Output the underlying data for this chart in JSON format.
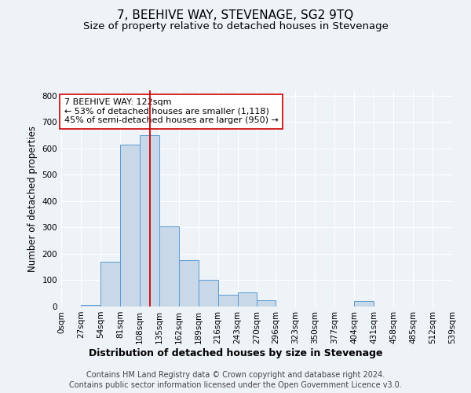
{
  "title": "7, BEEHIVE WAY, STEVENAGE, SG2 9TQ",
  "subtitle": "Size of property relative to detached houses in Stevenage",
  "xlabel": "Distribution of detached houses by size in Stevenage",
  "ylabel": "Number of detached properties",
  "footnote1": "Contains HM Land Registry data © Crown copyright and database right 2024.",
  "footnote2": "Contains public sector information licensed under the Open Government Licence v3.0.",
  "annotation_line1": "7 BEEHIVE WAY: 122sqm",
  "annotation_line2": "← 53% of detached houses are smaller (1,118)",
  "annotation_line3": "45% of semi-detached houses are larger (950) →",
  "property_size": 122,
  "bin_edges": [
    0,
    27,
    54,
    81,
    108,
    135,
    162,
    189,
    216,
    243,
    270,
    296,
    323,
    350,
    377,
    404,
    431,
    458,
    485,
    512,
    539
  ],
  "bar_heights": [
    0,
    5,
    170,
    615,
    650,
    305,
    175,
    100,
    45,
    55,
    25,
    0,
    0,
    0,
    0,
    20,
    0,
    0,
    0,
    0
  ],
  "bar_color": "#c8d8e8",
  "bar_edge_color": "#5b9bd5",
  "vline_color": "#cc0000",
  "vline_x": 122,
  "annotation_box_color": "#cc0000",
  "annotation_fill": "#ffffff",
  "background_color": "#eef3f8",
  "ylim": [
    0,
    820
  ],
  "yticks": [
    0,
    100,
    200,
    300,
    400,
    500,
    600,
    700,
    800
  ],
  "title_fontsize": 11,
  "subtitle_fontsize": 9.5,
  "xlabel_fontsize": 9,
  "ylabel_fontsize": 8.5,
  "tick_fontsize": 7.5,
  "annotation_fontsize": 8,
  "footnote_fontsize": 7
}
